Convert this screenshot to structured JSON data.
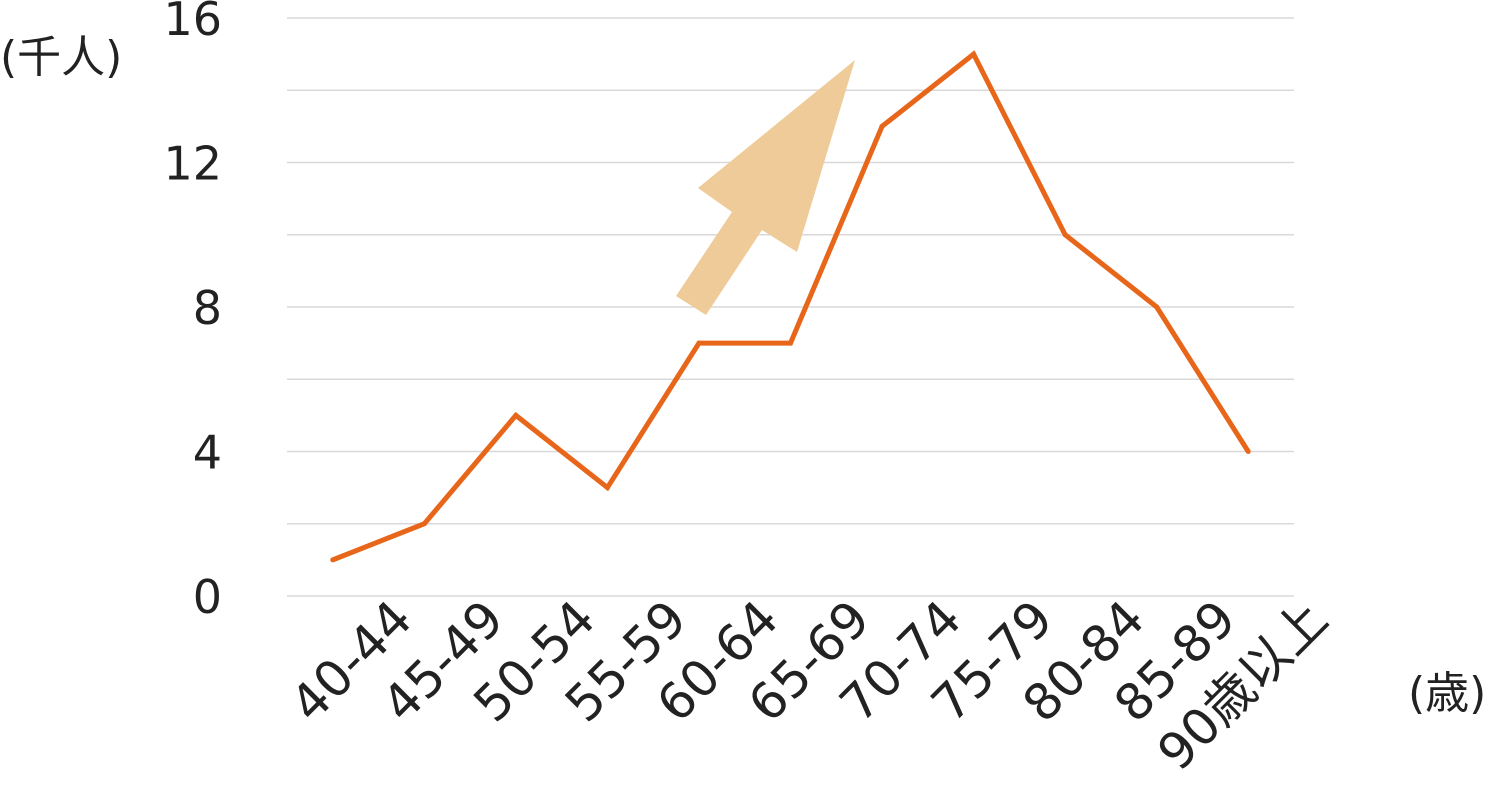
{
  "chart_data": {
    "type": "line",
    "title": "",
    "ylabel": "(千人)",
    "xlabel": "(歳)",
    "categories": [
      "40-44",
      "45-49",
      "50-54",
      "55-59",
      "60-64",
      "65-69",
      "70-74",
      "75-79",
      "80-84",
      "85-89",
      "90歳以上"
    ],
    "series": [
      {
        "values": [
          1,
          2,
          5,
          3,
          7,
          7,
          13,
          15,
          10,
          8,
          4
        ]
      }
    ],
    "ylim": [
      0,
      16
    ],
    "yticks": [
      0,
      4,
      8,
      12,
      16
    ],
    "grid_step": 2,
    "grid": true,
    "legend": "none",
    "annotation": "upward-arrow",
    "colors": {
      "line": "#E8661A",
      "arrow": "#EECB98",
      "grid": "#D9D9D9"
    }
  }
}
